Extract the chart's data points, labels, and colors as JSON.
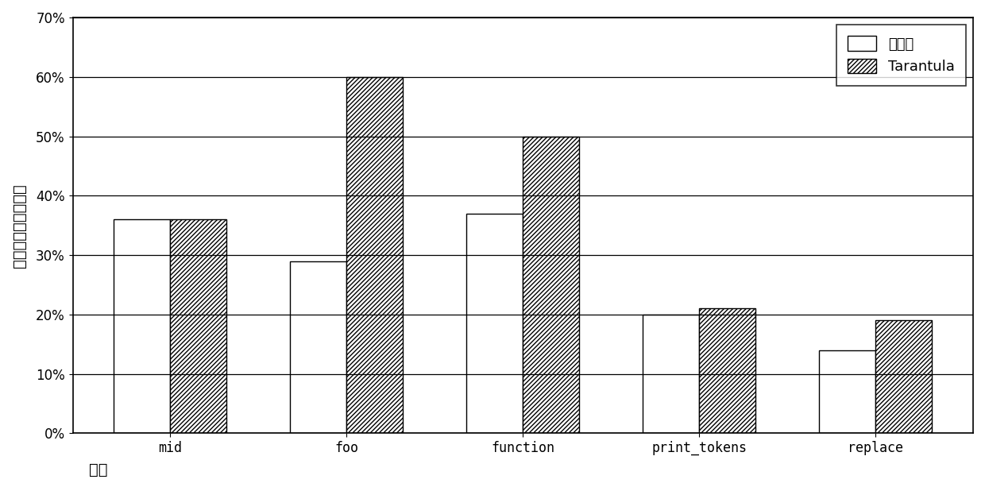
{
  "categories": [
    "mid",
    "foo",
    "function",
    "print_tokens",
    "replace"
  ],
  "series": {
    "ben_faming": [
      0.36,
      0.29,
      0.37,
      0.2,
      0.14
    ],
    "Tarantula": [
      0.36,
      0.6,
      0.5,
      0.21,
      0.19
    ]
  },
  "ylabel": "平均检测语句百分比",
  "xlabel": "程序",
  "ylim": [
    0,
    0.7
  ],
  "yticks": [
    0.0,
    0.1,
    0.2,
    0.3,
    0.4,
    0.5,
    0.6,
    0.7
  ],
  "ytick_labels": [
    "0%",
    "10%",
    "20%",
    "30%",
    "40%",
    "50%",
    "60%",
    "70%"
  ],
  "legend_label1": "本发明",
  "legend_label2": "Tarantula",
  "bar_width": 0.32,
  "facecolor": "white",
  "edgecolor": "black",
  "tick_fontsize": 12,
  "label_fontsize": 14
}
